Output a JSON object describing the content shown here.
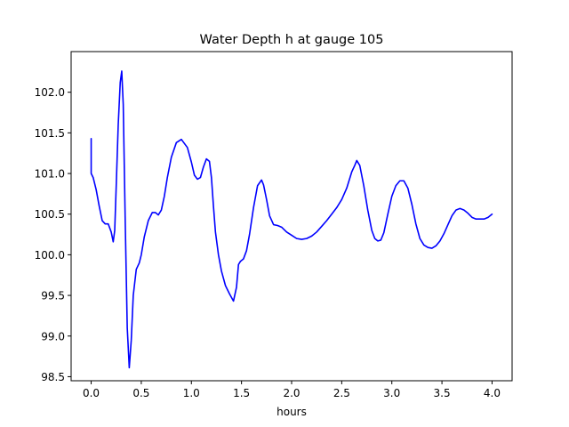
{
  "chart_data": {
    "type": "line",
    "title": "Water Depth h at gauge 105",
    "xlabel": "hours",
    "ylabel": "",
    "xlim": [
      -0.2,
      4.2
    ],
    "ylim": [
      98.45,
      102.5
    ],
    "xticks": [
      0.0,
      0.5,
      1.0,
      1.5,
      2.0,
      2.5,
      3.0,
      3.5,
      4.0
    ],
    "xtick_labels": [
      "0.0",
      "0.5",
      "1.0",
      "1.5",
      "2.0",
      "2.5",
      "3.0",
      "3.5",
      "4.0"
    ],
    "yticks": [
      98.5,
      99.0,
      99.5,
      100.0,
      100.5,
      101.0,
      101.5,
      102.0
    ],
    "ytick_labels": [
      "98.5",
      "99.0",
      "99.5",
      "100.0",
      "100.5",
      "101.0",
      "101.5",
      "102.0"
    ],
    "grid": false,
    "legend": "none",
    "series": [
      {
        "color": "#0000ff",
        "x": [
          0.0,
          0.0,
          0.0,
          0.02,
          0.05,
          0.08,
          0.11,
          0.14,
          0.17,
          0.2,
          0.22,
          0.235,
          0.25,
          0.27,
          0.29,
          0.305,
          0.32,
          0.34,
          0.36,
          0.38,
          0.4,
          0.42,
          0.45,
          0.48,
          0.5,
          0.53,
          0.57,
          0.61,
          0.64,
          0.67,
          0.7,
          0.73,
          0.76,
          0.8,
          0.85,
          0.9,
          0.96,
          1.0,
          1.03,
          1.06,
          1.09,
          1.12,
          1.15,
          1.18,
          1.2,
          1.22,
          1.24,
          1.27,
          1.3,
          1.34,
          1.38,
          1.42,
          1.45,
          1.47,
          1.49,
          1.52,
          1.55,
          1.58,
          1.62,
          1.66,
          1.7,
          1.72,
          1.75,
          1.78,
          1.82,
          1.86,
          1.9,
          1.95,
          2.0,
          2.05,
          2.1,
          2.15,
          2.2,
          2.25,
          2.3,
          2.35,
          2.4,
          2.45,
          2.5,
          2.55,
          2.6,
          2.63,
          2.65,
          2.68,
          2.72,
          2.76,
          2.8,
          2.83,
          2.86,
          2.89,
          2.92,
          2.96,
          3.0,
          3.04,
          3.08,
          3.12,
          3.16,
          3.2,
          3.24,
          3.28,
          3.32,
          3.36,
          3.4,
          3.44,
          3.48,
          3.52,
          3.56,
          3.6,
          3.64,
          3.68,
          3.72,
          3.76,
          3.8,
          3.84,
          3.88,
          3.92,
          3.96,
          4.0
        ],
        "y": [
          101.43,
          101.0,
          101.0,
          100.95,
          100.8,
          100.6,
          100.42,
          100.38,
          100.38,
          100.28,
          100.16,
          100.3,
          100.85,
          101.6,
          102.12,
          102.26,
          101.85,
          100.4,
          99.1,
          98.61,
          98.95,
          99.5,
          99.82,
          99.9,
          100.0,
          100.22,
          100.42,
          100.52,
          100.52,
          100.49,
          100.55,
          100.72,
          100.95,
          101.2,
          101.38,
          101.42,
          101.32,
          101.14,
          100.98,
          100.93,
          100.95,
          101.08,
          101.18,
          101.15,
          100.95,
          100.6,
          100.28,
          100.0,
          99.8,
          99.62,
          99.52,
          99.43,
          99.6,
          99.88,
          99.92,
          99.95,
          100.05,
          100.25,
          100.58,
          100.85,
          100.92,
          100.86,
          100.68,
          100.48,
          100.37,
          100.36,
          100.34,
          100.28,
          100.24,
          100.2,
          100.19,
          100.2,
          100.23,
          100.28,
          100.35,
          100.42,
          100.5,
          100.58,
          100.68,
          100.82,
          101.02,
          101.1,
          101.16,
          101.1,
          100.85,
          100.55,
          100.3,
          100.2,
          100.17,
          100.18,
          100.27,
          100.5,
          100.72,
          100.85,
          100.91,
          100.91,
          100.82,
          100.62,
          100.38,
          100.2,
          100.12,
          100.09,
          100.08,
          100.11,
          100.17,
          100.26,
          100.37,
          100.48,
          100.55,
          100.57,
          100.55,
          100.51,
          100.46,
          100.44,
          100.44,
          100.44,
          100.46,
          100.5
        ]
      }
    ]
  }
}
